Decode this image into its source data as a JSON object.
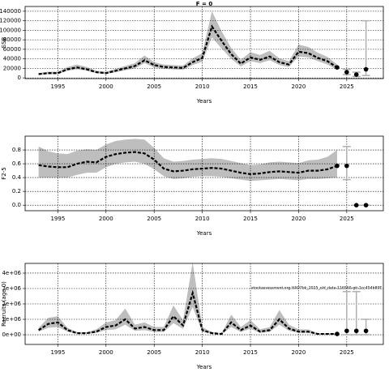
{
  "chart_data": [
    {
      "type": "line",
      "title": "F = 0",
      "xlabel": "Years",
      "ylabel": "SSB",
      "x": [
        1993,
        1994,
        1995,
        1996,
        1997,
        1998,
        1999,
        2000,
        2001,
        2002,
        2003,
        2004,
        2005,
        2006,
        2007,
        2008,
        2009,
        2010,
        2011,
        2012,
        2013,
        2014,
        2015,
        2016,
        2017,
        2018,
        2019,
        2020,
        2021,
        2022,
        2023,
        2024
      ],
      "values": [
        8000,
        10000,
        10000,
        18000,
        22000,
        18000,
        12000,
        10000,
        15000,
        20000,
        25000,
        37000,
        27000,
        23000,
        22000,
        21000,
        33000,
        42000,
        108000,
        78000,
        50000,
        30000,
        43000,
        38000,
        45000,
        33000,
        28000,
        55000,
        52000,
        42000,
        35000,
        22000
      ],
      "lower": [
        6000,
        8000,
        8000,
        15000,
        18000,
        15000,
        10000,
        8000,
        12000,
        16000,
        20000,
        31000,
        22000,
        19000,
        18000,
        17000,
        27000,
        34000,
        85000,
        62000,
        40000,
        24000,
        35000,
        31000,
        37000,
        27000,
        23000,
        45000,
        43000,
        35000,
        28000,
        17000
      ],
      "upper": [
        10000,
        13000,
        13000,
        23000,
        28000,
        23000,
        15000,
        13000,
        19000,
        25000,
        31000,
        47000,
        33000,
        28000,
        27000,
        26000,
        41000,
        52000,
        140000,
        98000,
        63000,
        38000,
        54000,
        48000,
        57000,
        41000,
        35000,
        70000,
        65000,
        53000,
        44000,
        28000
      ],
      "proj_x": [
        2025,
        2026,
        2027
      ],
      "proj_values": [
        12000,
        7000,
        18000
      ],
      "proj_lower": [
        7000,
        3000,
        5000
      ],
      "proj_upper": [
        18000,
        12000,
        120000
      ],
      "xlim": [
        1991.6,
        2028.8
      ],
      "xticks": [
        1995,
        2000,
        2005,
        2010,
        2015,
        2020,
        2025
      ],
      "ylim": [
        -1500,
        150000
      ],
      "yticks": [
        0,
        20000,
        40000,
        60000,
        80000,
        100000,
        120000,
        140000
      ],
      "grid": true,
      "color": "#000000",
      "band_color": "#bebebe",
      "bar_color": "#b0b0b0"
    },
    {
      "type": "line",
      "xlabel": "Years",
      "ylabel": "F2-5",
      "x": [
        1993,
        1994,
        1995,
        1996,
        1997,
        1998,
        1999,
        2000,
        2001,
        2002,
        2003,
        2004,
        2005,
        2006,
        2007,
        2008,
        2009,
        2010,
        2011,
        2012,
        2013,
        2014,
        2015,
        2016,
        2017,
        2018,
        2019,
        2020,
        2021,
        2022,
        2023,
        2024
      ],
      "values": [
        0.58,
        0.56,
        0.55,
        0.55,
        0.6,
        0.63,
        0.62,
        0.7,
        0.74,
        0.76,
        0.77,
        0.75,
        0.66,
        0.53,
        0.49,
        0.5,
        0.52,
        0.53,
        0.54,
        0.53,
        0.5,
        0.47,
        0.45,
        0.46,
        0.48,
        0.49,
        0.48,
        0.47,
        0.5,
        0.5,
        0.52,
        0.57
      ],
      "lower": [
        0.4,
        0.4,
        0.4,
        0.4,
        0.44,
        0.47,
        0.47,
        0.55,
        0.6,
        0.62,
        0.63,
        0.6,
        0.52,
        0.42,
        0.38,
        0.39,
        0.41,
        0.42,
        0.42,
        0.41,
        0.39,
        0.37,
        0.35,
        0.36,
        0.37,
        0.38,
        0.37,
        0.36,
        0.38,
        0.38,
        0.39,
        0.4
      ],
      "upper": [
        0.85,
        0.78,
        0.75,
        0.74,
        0.79,
        0.81,
        0.8,
        0.88,
        0.93,
        0.95,
        0.96,
        0.95,
        0.83,
        0.68,
        0.63,
        0.64,
        0.66,
        0.67,
        0.68,
        0.67,
        0.64,
        0.61,
        0.58,
        0.59,
        0.62,
        0.63,
        0.62,
        0.61,
        0.65,
        0.66,
        0.7,
        0.8
      ],
      "proj_x": [
        2025,
        2026,
        2027
      ],
      "proj_values": [
        0.57,
        0,
        0
      ],
      "proj_lower": [
        0.37,
        0,
        0
      ],
      "proj_upper": [
        0.85,
        0,
        0
      ],
      "xlim": [
        1991.6,
        2028.8
      ],
      "xticks": [
        1995,
        2000,
        2005,
        2010,
        2015,
        2020,
        2025
      ],
      "ylim": [
        -0.08,
        1.0
      ],
      "yticks": [
        {
          "value": 0,
          "label": "0.0"
        },
        {
          "value": 0.2,
          "label": "0.2"
        },
        {
          "value": 0.4,
          "label": "0.4"
        },
        {
          "value": 0.6,
          "label": "0.6"
        },
        {
          "value": 0.8,
          "label": "0.8"
        }
      ],
      "grid": true,
      "color": "#000000",
      "band_color": "#bebebe",
      "bar_color": "#b0b0b0"
    },
    {
      "type": "line",
      "xlabel": "Years",
      "ylabel": "Recruits (age 0)",
      "annotation": "stockassessment.org HAD7bk_2025_old_data-116560-git-1cc454b80E",
      "x": [
        1993,
        1994,
        1995,
        1996,
        1997,
        1998,
        1999,
        2000,
        2001,
        2002,
        2003,
        2004,
        2005,
        2006,
        2007,
        2008,
        2009,
        2010,
        2011,
        2012,
        2013,
        2014,
        2015,
        2016,
        2017,
        2018,
        2019,
        2020,
        2021,
        2022,
        2023,
        2024
      ],
      "values": [
        300000,
        700000,
        800000,
        300000,
        100000,
        100000,
        200000,
        500000,
        600000,
        1000000,
        400000,
        500000,
        300000,
        300000,
        1200000,
        600000,
        2700000,
        300000,
        100000,
        50000,
        800000,
        300000,
        600000,
        200000,
        300000,
        1000000,
        400000,
        200000,
        200000,
        50000,
        50000,
        50000
      ],
      "lower": [
        200000,
        450000,
        500000,
        200000,
        60000,
        60000,
        120000,
        300000,
        350000,
        650000,
        250000,
        300000,
        180000,
        180000,
        750000,
        380000,
        1800000,
        180000,
        60000,
        30000,
        500000,
        180000,
        380000,
        120000,
        180000,
        650000,
        250000,
        120000,
        120000,
        30000,
        30000,
        20000
      ],
      "upper": [
        450000,
        1100000,
        1200000,
        450000,
        160000,
        160000,
        350000,
        800000,
        950000,
        1700000,
        650000,
        800000,
        500000,
        500000,
        1900000,
        950000,
        4700000,
        500000,
        170000,
        90000,
        1300000,
        500000,
        950000,
        350000,
        500000,
        1600000,
        650000,
        350000,
        350000,
        90000,
        90000,
        100000
      ],
      "proj_x": [
        2025,
        2026,
        2027
      ],
      "proj_values": [
        250000,
        250000,
        250000
      ],
      "proj_lower": [
        0,
        0,
        0
      ],
      "proj_upper": [
        2800000,
        2800000,
        1000000
      ],
      "xlim": [
        1991.6,
        2028.8
      ],
      "xticks": [
        1995,
        2000,
        2005,
        2010,
        2015,
        2020,
        2025
      ],
      "ylim": [
        -630000,
        4630000
      ],
      "yticks": [
        {
          "value": 0,
          "label": "0e+00"
        },
        {
          "value": 1000000,
          "label": "1e+06"
        },
        {
          "value": 2000000,
          "label": "2e+06"
        },
        {
          "value": 3000000,
          "label": "3e+06"
        },
        {
          "value": 4000000,
          "label": "4e+06"
        }
      ],
      "grid": true,
      "color": "#000000",
      "band_color": "#bebebe",
      "bar_color": "#b0b0b0"
    }
  ]
}
